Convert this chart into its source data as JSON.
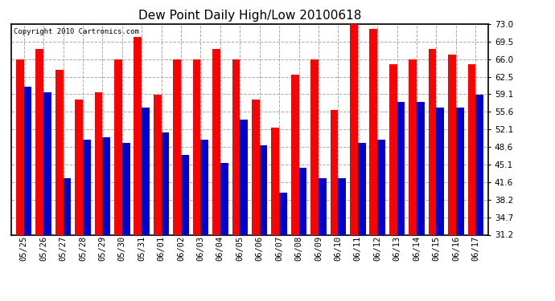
{
  "title": "Dew Point Daily High/Low 20100618",
  "copyright": "Copyright 2010 Cartronics.com",
  "dates": [
    "05/25",
    "05/26",
    "05/27",
    "05/28",
    "05/29",
    "05/30",
    "05/31",
    "06/01",
    "06/02",
    "06/03",
    "06/04",
    "06/05",
    "06/06",
    "06/07",
    "06/08",
    "06/09",
    "06/10",
    "06/11",
    "06/12",
    "06/13",
    "06/14",
    "06/15",
    "06/16",
    "06/17"
  ],
  "highs": [
    66.0,
    68.0,
    64.0,
    58.0,
    59.5,
    66.0,
    70.5,
    59.0,
    66.0,
    66.0,
    68.0,
    66.0,
    58.0,
    52.5,
    63.0,
    66.0,
    56.0,
    74.0,
    72.0,
    65.0,
    66.0,
    68.0,
    67.0,
    65.0
  ],
  "lows": [
    60.5,
    59.5,
    42.5,
    50.0,
    50.5,
    49.5,
    56.5,
    51.5,
    47.0,
    50.0,
    45.5,
    54.0,
    49.0,
    39.5,
    44.5,
    42.5,
    42.5,
    49.5,
    50.0,
    57.5,
    57.5,
    56.5,
    56.5,
    59.0
  ],
  "high_color": "#ff0000",
  "low_color": "#0000cc",
  "bg_color": "#ffffff",
  "plot_bg_color": "#ffffff",
  "grid_color": "#aaaaaa",
  "yticks": [
    31.2,
    34.7,
    38.2,
    41.6,
    45.1,
    48.6,
    52.1,
    55.6,
    59.1,
    62.5,
    66.0,
    69.5,
    73.0
  ],
  "ymin": 31.2,
  "ymax": 73.0,
  "bar_width": 0.4
}
